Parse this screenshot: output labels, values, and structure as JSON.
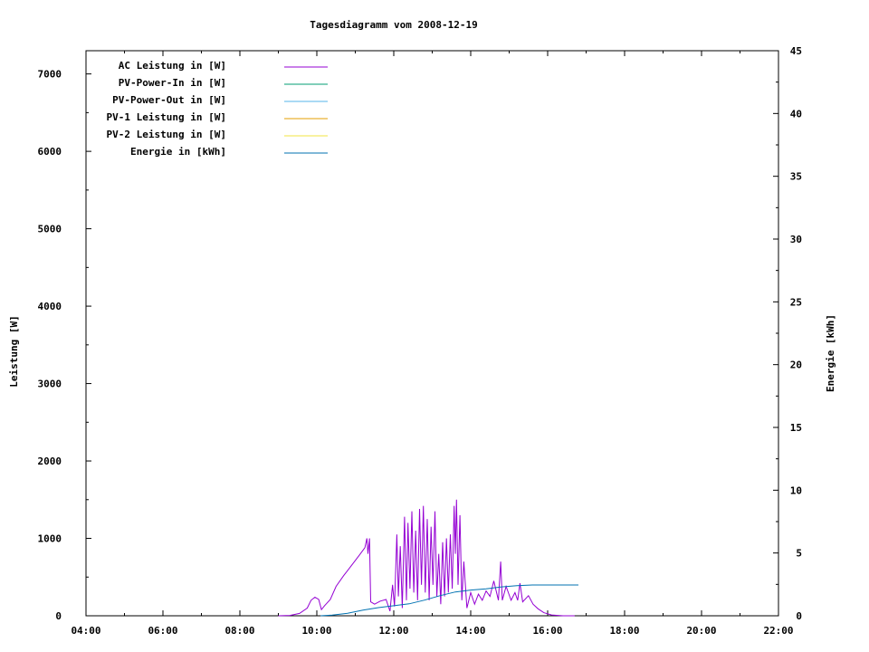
{
  "chart_data": {
    "type": "line",
    "title": "Tagesdiagramm vom 2008-12-19",
    "xlabel": "",
    "ylabel": "Leistung [W]",
    "y2label": "Energie [kWh]",
    "x_ticks": [
      "04:00",
      "06:00",
      "08:00",
      "10:00",
      "12:00",
      "14:00",
      "16:00",
      "18:00",
      "20:00",
      "22:00"
    ],
    "xlim_hours": [
      4,
      22
    ],
    "ylim": [
      0,
      7300
    ],
    "y_ticks": [
      0,
      1000,
      2000,
      3000,
      4000,
      5000,
      6000,
      7000
    ],
    "y2lim": [
      0,
      45
    ],
    "y2_ticks": [
      0,
      5,
      10,
      15,
      20,
      25,
      30,
      35,
      40,
      45
    ],
    "grid": false,
    "legend_placement": "top-left",
    "series": [
      {
        "name": "AC Leistung in [W]",
        "color": "#9400d3",
        "axis": "y1",
        "points": [
          [
            9.0,
            0
          ],
          [
            9.3,
            5
          ],
          [
            9.55,
            30
          ],
          [
            9.75,
            100
          ],
          [
            9.85,
            200
          ],
          [
            9.95,
            240
          ],
          [
            10.05,
            210
          ],
          [
            10.12,
            80
          ],
          [
            10.2,
            130
          ],
          [
            10.35,
            210
          ],
          [
            10.5,
            380
          ],
          [
            10.7,
            520
          ],
          [
            10.9,
            650
          ],
          [
            11.1,
            780
          ],
          [
            11.25,
            880
          ],
          [
            11.3,
            1000
          ],
          [
            11.33,
            800
          ],
          [
            11.37,
            1000
          ],
          [
            11.4,
            180
          ],
          [
            11.5,
            150
          ],
          [
            11.65,
            190
          ],
          [
            11.8,
            210
          ],
          [
            11.9,
            60
          ],
          [
            11.97,
            400
          ],
          [
            12.02,
            120
          ],
          [
            12.08,
            1050
          ],
          [
            12.12,
            250
          ],
          [
            12.17,
            900
          ],
          [
            12.22,
            100
          ],
          [
            12.28,
            1280
          ],
          [
            12.33,
            200
          ],
          [
            12.37,
            1200
          ],
          [
            12.42,
            350
          ],
          [
            12.47,
            1350
          ],
          [
            12.52,
            300
          ],
          [
            12.57,
            1100
          ],
          [
            12.62,
            200
          ],
          [
            12.67,
            1380
          ],
          [
            12.72,
            400
          ],
          [
            12.77,
            1420
          ],
          [
            12.82,
            300
          ],
          [
            12.87,
            1250
          ],
          [
            12.92,
            200
          ],
          [
            12.97,
            1150
          ],
          [
            13.02,
            400
          ],
          [
            13.07,
            1350
          ],
          [
            13.12,
            250
          ],
          [
            13.17,
            800
          ],
          [
            13.22,
            150
          ],
          [
            13.27,
            950
          ],
          [
            13.32,
            250
          ],
          [
            13.37,
            1000
          ],
          [
            13.42,
            300
          ],
          [
            13.47,
            1050
          ],
          [
            13.52,
            350
          ],
          [
            13.57,
            1420
          ],
          [
            13.6,
            800
          ],
          [
            13.63,
            1500
          ],
          [
            13.67,
            400
          ],
          [
            13.72,
            1300
          ],
          [
            13.77,
            200
          ],
          [
            13.82,
            700
          ],
          [
            13.9,
            100
          ],
          [
            14.0,
            300
          ],
          [
            14.1,
            150
          ],
          [
            14.2,
            280
          ],
          [
            14.3,
            200
          ],
          [
            14.4,
            320
          ],
          [
            14.5,
            250
          ],
          [
            14.6,
            450
          ],
          [
            14.72,
            200
          ],
          [
            14.78,
            700
          ],
          [
            14.82,
            200
          ],
          [
            14.92,
            380
          ],
          [
            15.05,
            200
          ],
          [
            15.15,
            300
          ],
          [
            15.22,
            200
          ],
          [
            15.28,
            420
          ],
          [
            15.35,
            180
          ],
          [
            15.5,
            260
          ],
          [
            15.62,
            150
          ],
          [
            15.75,
            90
          ],
          [
            15.9,
            40
          ],
          [
            16.1,
            10
          ],
          [
            16.4,
            0
          ],
          [
            16.7,
            0
          ]
        ]
      },
      {
        "name": "PV-Power-In in [W]",
        "color": "#009e73",
        "axis": "y1",
        "points": []
      },
      {
        "name": "PV-Power-Out in [W]",
        "color": "#56b4e9",
        "axis": "y1",
        "points": []
      },
      {
        "name": "PV-1 Leistung in [W]",
        "color": "#e69f00",
        "axis": "y1",
        "points": []
      },
      {
        "name": "PV-2 Leistung in [W]",
        "color": "#f0e442",
        "axis": "y1",
        "points": []
      },
      {
        "name": "Energie in [kWh]",
        "color": "#0072b2",
        "axis": "y2",
        "points": [
          [
            10.1,
            0
          ],
          [
            10.4,
            0.05
          ],
          [
            10.8,
            0.2
          ],
          [
            11.2,
            0.45
          ],
          [
            11.6,
            0.65
          ],
          [
            12.0,
            0.8
          ],
          [
            12.4,
            0.95
          ],
          [
            12.8,
            1.25
          ],
          [
            13.2,
            1.6
          ],
          [
            13.6,
            1.9
          ],
          [
            14.0,
            2.05
          ],
          [
            14.4,
            2.15
          ],
          [
            14.8,
            2.3
          ],
          [
            15.2,
            2.4
          ],
          [
            15.6,
            2.45
          ],
          [
            16.0,
            2.45
          ],
          [
            16.8,
            2.45
          ]
        ]
      }
    ]
  }
}
